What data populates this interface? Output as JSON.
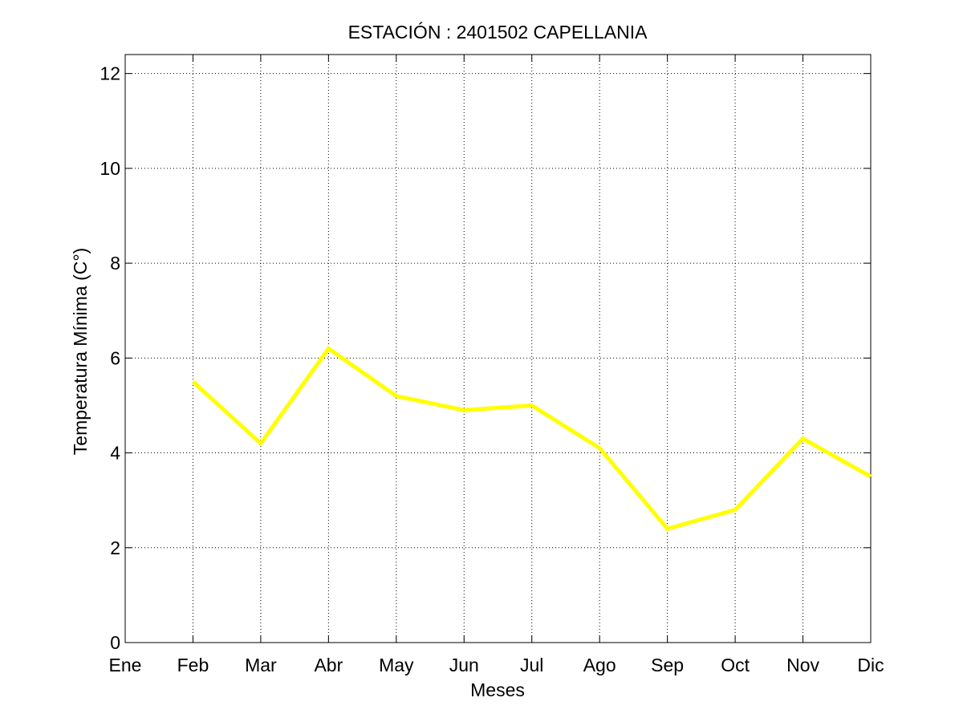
{
  "chart_data": {
    "type": "line",
    "title": "ESTACIÓN :  2401502  CAPELLANIA",
    "xlabel": "Meses",
    "ylabel": "Temperatura Mínima (C°)",
    "categories": [
      "Ene",
      "Feb",
      "Mar",
      "Abr",
      "May",
      "Jun",
      "Jul",
      "Ago",
      "Sep",
      "Oct",
      "Nov",
      "Dic"
    ],
    "ylim": [
      0,
      12.4
    ],
    "yticks": [
      0,
      2,
      4,
      6,
      8,
      10,
      12
    ],
    "grid": true,
    "series": [
      {
        "color": "#ffff00",
        "values": [
          null,
          5.5,
          4.2,
          6.2,
          5.2,
          4.9,
          5.0,
          4.1,
          2.4,
          2.8,
          4.3,
          3.5
        ]
      }
    ]
  }
}
